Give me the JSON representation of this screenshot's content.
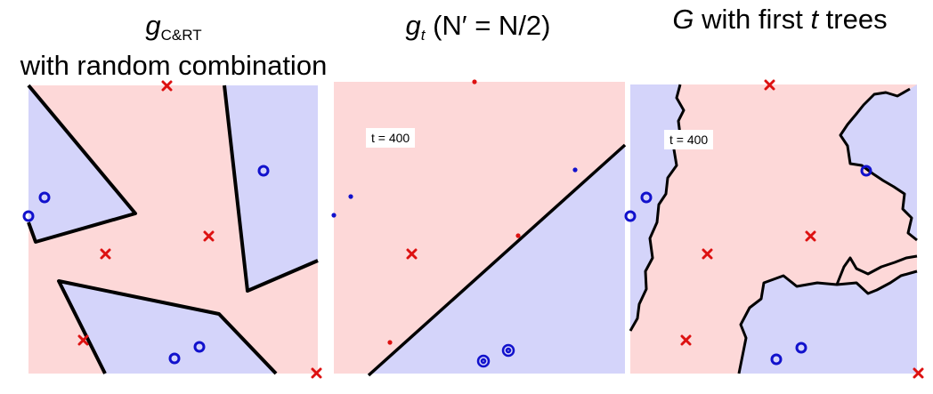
{
  "panels": [
    {
      "id": "cart-random",
      "title_main": "g",
      "title_sub": "C&RT",
      "title_line2": "with random combination"
    },
    {
      "id": "bagged-half",
      "title_main": "g",
      "title_sub": "t",
      "title_rest": " (N′ = N/2)",
      "t_label": "t = 400"
    },
    {
      "id": "forest",
      "title_main": "G",
      "title_mid": " with first ",
      "title_t": "t",
      "title_end": " trees",
      "t_label": "t = 400"
    }
  ],
  "colors": {
    "positive_region": "#d4d4fa",
    "negative_region": "#fdd8d8",
    "positive_marker": "#1111cc",
    "negative_marker": "#dd1111",
    "boundary": "#000000"
  }
}
